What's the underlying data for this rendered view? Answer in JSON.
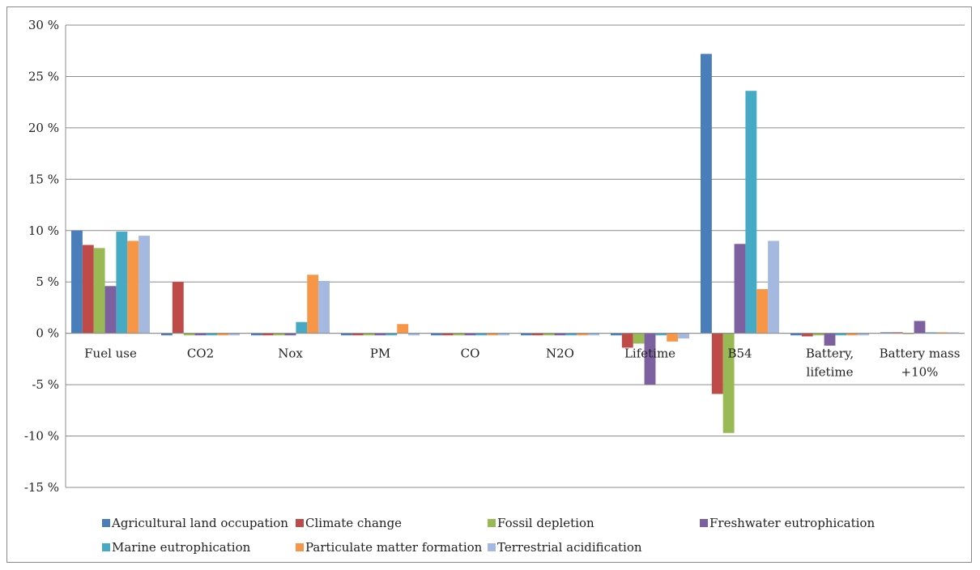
{
  "chart_data": {
    "type": "bar",
    "title": "",
    "xlabel": "",
    "ylabel": "",
    "ylim": [
      -15,
      30
    ],
    "ytick_step": 5,
    "ytick_labels": [
      "-15 %",
      "-10 %",
      "-5 %",
      "0 %",
      "5 %",
      "10 %",
      "15 %",
      "20 %",
      "25 %",
      "30 %"
    ],
    "grid": true,
    "legend_position": "bottom",
    "categories": [
      [
        "Fuel use"
      ],
      [
        "CO2"
      ],
      [
        "Nox"
      ],
      [
        "PM"
      ],
      [
        "CO"
      ],
      [
        "N2O"
      ],
      [
        "Lifetime"
      ],
      [
        "B54"
      ],
      [
        "Battery,",
        "lifetime"
      ],
      [
        "Battery mass",
        "+10%"
      ]
    ],
    "series": [
      {
        "name": "Agricultural land occupation",
        "color": "#4a7ebb",
        "values": [
          10.0,
          -0.2,
          -0.2,
          -0.2,
          -0.2,
          -0.2,
          -0.2,
          27.2,
          -0.2,
          0.1
        ]
      },
      {
        "name": "Climate change",
        "color": "#be4b48",
        "values": [
          8.6,
          5.0,
          -0.2,
          -0.2,
          -0.2,
          -0.2,
          -1.4,
          -5.9,
          -0.3,
          0.1
        ]
      },
      {
        "name": "Fossil depletion",
        "color": "#98b954",
        "values": [
          8.3,
          -0.2,
          -0.2,
          -0.2,
          -0.2,
          -0.2,
          -1.0,
          -9.7,
          -0.2,
          0.0
        ]
      },
      {
        "name": "Freshwater eutrophication",
        "color": "#7d60a0",
        "values": [
          4.6,
          -0.2,
          -0.2,
          -0.2,
          -0.2,
          -0.2,
          -5.0,
          8.7,
          -1.2,
          1.2
        ]
      },
      {
        "name": "Marine eutrophication",
        "color": "#46aac5",
        "values": [
          9.9,
          -0.2,
          1.1,
          -0.2,
          -0.2,
          -0.2,
          -0.2,
          23.6,
          -0.2,
          0.1
        ]
      },
      {
        "name": "Particulate matter formation",
        "color": "#f79646",
        "values": [
          9.0,
          -0.2,
          5.7,
          0.9,
          -0.2,
          -0.2,
          -0.8,
          4.3,
          -0.2,
          0.1
        ]
      },
      {
        "name": "Terrestrial acidification",
        "color": "#a5b9e0",
        "values": [
          9.5,
          -0.2,
          5.1,
          -0.2,
          -0.2,
          -0.2,
          -0.5,
          9.0,
          -0.2,
          0.1
        ]
      }
    ]
  }
}
